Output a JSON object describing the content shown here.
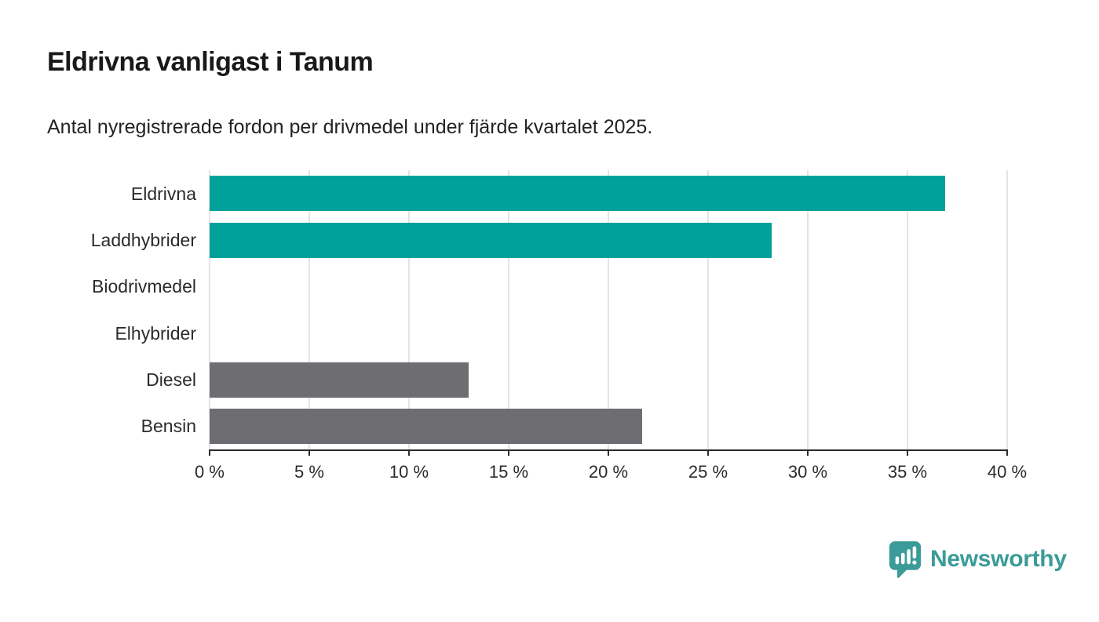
{
  "header": {
    "title": "Eldrivna vanligast i Tanum",
    "subtitle": "Antal nyregistrerade fordon per drivmedel under fjärde kvartalet 2025."
  },
  "chart_data": {
    "type": "bar",
    "orientation": "horizontal",
    "title": "Eldrivna vanligast i Tanum",
    "subtitle": "Antal nyregistrerade fordon per drivmedel under fjärde kvartalet 2025.",
    "categories": [
      "Eldrivna",
      "Laddhybrider",
      "Biodrivmedel",
      "Elhybrider",
      "Diesel",
      "Bensin"
    ],
    "values": [
      36.9,
      28.2,
      0,
      0,
      13.0,
      21.7
    ],
    "colors": [
      "#00a19a",
      "#00a19a",
      "#6e6e72",
      "#6e6e72",
      "#6e6e72",
      "#6e6e72"
    ],
    "xlim": [
      0,
      40
    ],
    "xticks": [
      0,
      5,
      10,
      15,
      20,
      25,
      30,
      35,
      40
    ],
    "xtick_labels": [
      "0 %",
      "5 %",
      "10 %",
      "15 %",
      "20 %",
      "25 %",
      "30 %",
      "35 %",
      "40 %"
    ],
    "grid": true,
    "legend": false,
    "xlabel": "",
    "ylabel": ""
  },
  "branding": {
    "logo_text": "Newsworthy",
    "logo_color": "#3b9b98",
    "icon": "newsworthy-speech-bubble-chart-icon"
  },
  "colors": {
    "teal": "#00a19a",
    "gray": "#6e6e72",
    "gridline": "#e4e4e4",
    "axis": "#2b2b2b",
    "text": "#232323"
  }
}
